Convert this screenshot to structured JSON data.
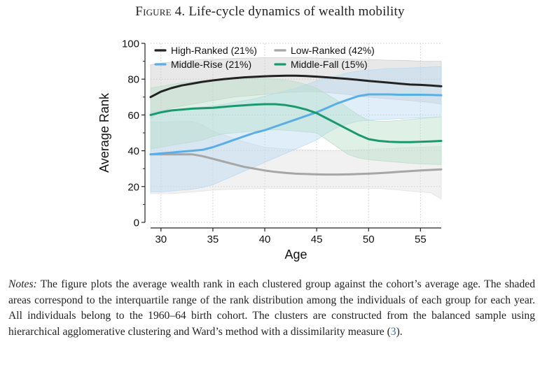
{
  "figure": {
    "label": "Figure 4.",
    "title": "Life-cycle dynamics of wealth mobility"
  },
  "notes": {
    "lead": "Notes:",
    "text_before_ref": " The figure plots the average wealth rank in each clustered group against the cohort’s average age. The shaded areas correspond to the interquartile range of the rank distribution among the individuals of each group for each year. All individuals belong to the 1960–64 birth cohort. The clusters are constructed from the balanced sample using hierarchical agglomerative clustering and Ward’s method with a dissimilarity measure (",
    "ref": "3",
    "text_after_ref": ")."
  },
  "chart_data": {
    "type": "line",
    "xlabel": "Age",
    "ylabel": "Average Rank",
    "xlim": [
      29,
      57
    ],
    "ylim": [
      0,
      100
    ],
    "xticks": [
      30,
      35,
      40,
      45,
      50,
      55
    ],
    "yticks": [
      0,
      20,
      40,
      60,
      80,
      100
    ],
    "grid": "dotted",
    "legend_position": "top",
    "x": [
      29,
      30,
      31,
      32,
      33,
      34,
      35,
      36,
      37,
      38,
      39,
      40,
      41,
      42,
      43,
      44,
      45,
      46,
      47,
      48,
      49,
      50,
      51,
      52,
      53,
      54,
      55,
      56,
      57
    ],
    "series": [
      {
        "name": "High-Ranked (21%)",
        "color": "#222222",
        "band_color": "#cccccc",
        "values": [
          70,
          73,
          75,
          76.5,
          77.5,
          78.5,
          79.3,
          80,
          80.5,
          81,
          81.3,
          81.6,
          81.8,
          81.9,
          81.9,
          81.7,
          81.4,
          81,
          80.6,
          80.1,
          79.6,
          79,
          78.5,
          78,
          77.5,
          77,
          76.8,
          76.5,
          76
        ],
        "q1": [
          58,
          62,
          64,
          65,
          66,
          67,
          68,
          69,
          70,
          70.5,
          71,
          71.5,
          72,
          72.5,
          72.8,
          73,
          73,
          72.5,
          72,
          71.5,
          70.5,
          70,
          69.5,
          69,
          68.5,
          68,
          67.5,
          67,
          66
        ],
        "q3": [
          88,
          89,
          89.5,
          90,
          90.5,
          91,
          91,
          91.3,
          91.5,
          91.7,
          91.8,
          92,
          92,
          92,
          92,
          92,
          91.8,
          91.6,
          91.4,
          91.2,
          91,
          91,
          90.8,
          90.6,
          90.5,
          90.3,
          90,
          90,
          90
        ]
      },
      {
        "name": "Low-Ranked (42%)",
        "color": "#a6a6a6",
        "band_color": "#e0e0e0",
        "values": [
          38,
          38,
          38,
          38,
          38,
          37,
          35.5,
          34,
          32.5,
          31,
          30,
          29,
          28.2,
          27.6,
          27.2,
          27,
          26.8,
          26.7,
          26.7,
          26.8,
          27,
          27.2,
          27.5,
          27.8,
          28.3,
          28.6,
          29,
          29.3,
          29.6
        ],
        "q1": [
          16,
          16,
          16,
          16.5,
          17,
          17.5,
          18,
          18.3,
          18.5,
          18.7,
          18.8,
          19,
          19,
          19,
          19,
          19,
          19,
          19,
          19,
          19,
          19,
          19,
          19,
          18.5,
          18,
          17.5,
          17,
          16.5,
          13
        ],
        "q3": [
          56,
          56,
          56.2,
          56.4,
          56.5,
          54.5,
          51,
          49,
          47,
          45,
          43.5,
          42,
          41.5,
          41,
          40.7,
          40.5,
          40.3,
          40.2,
          40.2,
          40.3,
          40.5,
          40.7,
          41,
          41.2,
          41.5,
          41.8,
          42,
          42.2,
          42.5
        ]
      },
      {
        "name": "Middle-Rise (21%)",
        "color": "#5aaee6",
        "band_color": "#b7d9f2",
        "values": [
          38,
          38.5,
          39,
          39.5,
          40,
          40.5,
          42,
          44,
          46,
          48,
          50,
          51.5,
          53.5,
          55.5,
          57.5,
          59.5,
          61.5,
          64,
          66.5,
          68.5,
          70.5,
          71.5,
          71.5,
          71.5,
          71.3,
          71.3,
          71.3,
          71.2,
          71
        ],
        "q1": [
          17,
          17,
          17.5,
          18,
          18.5,
          19.5,
          21,
          23.5,
          26,
          28.5,
          31,
          33.5,
          36,
          38.5,
          41,
          43.5,
          46,
          50,
          53,
          55,
          56.5,
          57,
          57.5,
          57.7,
          58,
          58.2,
          58.4,
          58.6,
          59
        ],
        "q3": [
          62,
          62.5,
          63,
          63.5,
          64,
          64.5,
          65,
          66,
          67,
          68,
          69,
          70.5,
          72,
          73.5,
          75,
          77,
          79,
          80.5,
          82,
          83.5,
          84.5,
          85,
          85.5,
          86,
          86,
          86.3,
          86.5,
          86.8,
          87
        ]
      },
      {
        "name": "Middle-Fall (15%)",
        "color": "#1a9a6c",
        "band_color": "#b8ddc9",
        "values": [
          60,
          61.5,
          62.5,
          63,
          63.5,
          63.8,
          64,
          64.5,
          65,
          65.4,
          65.8,
          66,
          66,
          65.5,
          64.5,
          63,
          61,
          58,
          55,
          52,
          49,
          46.5,
          45.5,
          45,
          44.8,
          44.8,
          45,
          45.2,
          45.5
        ],
        "q1": [
          41,
          42,
          43,
          44,
          45,
          46,
          48,
          49.5,
          50,
          50.5,
          51,
          51.5,
          51.8,
          51.5,
          51,
          50.5,
          50,
          46,
          42,
          38,
          36,
          35,
          34.5,
          34,
          33.5,
          33,
          32.7,
          32.5,
          32.3
        ],
        "q3": [
          75,
          76,
          77,
          78,
          78.5,
          79,
          79.5,
          80,
          80.3,
          80.5,
          80.5,
          80.3,
          80,
          79.5,
          78.5,
          77,
          75,
          71.5,
          68,
          64,
          60,
          57,
          56.5,
          56.5,
          57,
          57.5,
          58,
          58.5,
          59
        ]
      }
    ]
  }
}
